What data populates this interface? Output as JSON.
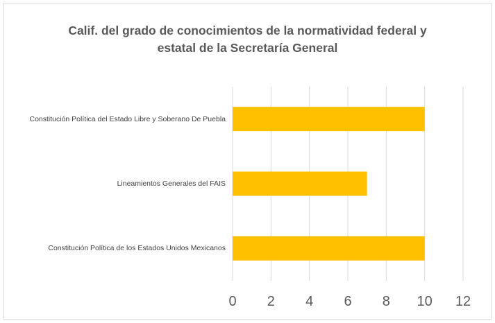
{
  "chart_data": {
    "type": "bar",
    "orientation": "horizontal",
    "title": "Calif. del grado de conocimientos de la normatividad federal y estatal de la Secretaría General",
    "categories": [
      "Constitución Política del Estado Libre y Soberano De Puebla",
      "Lineamientos Generales del FAIS",
      "Constitución Política de los Estados Unidos Mexicanos"
    ],
    "values": [
      10,
      7,
      10
    ],
    "color": "#ffc000",
    "xlim": [
      0,
      12
    ],
    "xticks": [
      0,
      2,
      4,
      6,
      8,
      10,
      12
    ],
    "grid": true
  }
}
